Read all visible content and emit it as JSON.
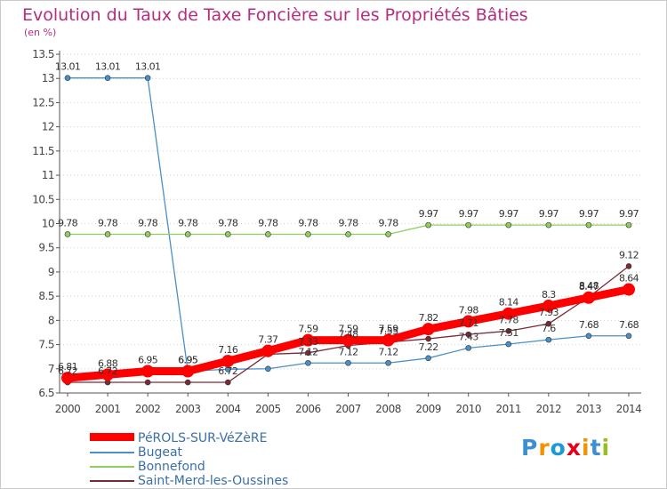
{
  "chart_data": {
    "type": "line",
    "title": "Evolution du Taux de Taxe Foncière sur les Propriétés Bâties",
    "ylabel": "(en %)",
    "xlabel": "",
    "ylim": [
      6.5,
      13.5
    ],
    "yticks": [
      6.5,
      7,
      7.5,
      8,
      8.5,
      9,
      9.5,
      10,
      10.5,
      11,
      11.5,
      12,
      12.5,
      13,
      13.5
    ],
    "x": [
      "2000",
      "2001",
      "2002",
      "2003",
      "2004",
      "2005",
      "2006",
      "2007",
      "2008",
      "2009",
      "2010",
      "2011",
      "2012",
      "2013",
      "2014"
    ],
    "grid": "horizontal dotted",
    "series": [
      {
        "name": "PéROLS-SUR-VéZèRE",
        "color": "#ff0000",
        "values": [
          6.81,
          6.88,
          6.95,
          6.95,
          7.16,
          7.37,
          7.59,
          7.59,
          7.59,
          7.82,
          7.98,
          8.14,
          8.3,
          8.47,
          8.64
        ],
        "labels": [
          "6.81",
          "6.88",
          "6.95",
          "6.95",
          "7.16",
          "7.37",
          "7.59",
          "7.59",
          "7.59",
          "7.82",
          "7.98",
          "8.14",
          "8.3",
          "8.47",
          "8.64"
        ]
      },
      {
        "name": "Bugeat",
        "color": "#4a90c8",
        "values": [
          13.01,
          13.01,
          13.01,
          6.95,
          6.99,
          7.0,
          7.12,
          7.12,
          7.12,
          7.22,
          7.43,
          7.51,
          7.6,
          7.68,
          7.68
        ],
        "labels": [
          "13.01",
          "13.01",
          "13.01",
          "6.95",
          "",
          "",
          "7.12",
          "7.12",
          "7.12",
          "7.22",
          "7.43",
          "7.51",
          "7.6",
          "7.68",
          "7.68"
        ]
      },
      {
        "name": "Bonnefond",
        "color": "#8fce5a",
        "values": [
          9.78,
          9.78,
          9.78,
          9.78,
          9.78,
          9.78,
          9.78,
          9.78,
          9.78,
          9.97,
          9.97,
          9.97,
          9.97,
          9.97,
          9.97
        ],
        "labels": [
          "9.78",
          "9.78",
          "9.78",
          "9.78",
          "9.78",
          "9.78",
          "9.78",
          "9.78",
          "9.78",
          "9.97",
          "9.97",
          "9.97",
          "9.97",
          "9.97",
          "9.97"
        ]
      },
      {
        "name": "Saint-Merd-les-Oussines",
        "color": "#7a2a35",
        "values": [
          6.72,
          6.72,
          6.72,
          6.72,
          6.72,
          7.3,
          7.33,
          7.48,
          7.55,
          7.62,
          7.71,
          7.78,
          7.93,
          8.48,
          9.12
        ],
        "labels": [
          "6.72",
          "6.72",
          "",
          "",
          "6.72",
          "",
          "7.33",
          "7.48",
          "7.55",
          "",
          "7.71",
          "7.78",
          "7.93",
          "8.48",
          "9.12"
        ]
      }
    ]
  },
  "legend": [
    {
      "label": "PéROLS-SUR-VéZèRE",
      "color": "#ff0000"
    },
    {
      "label": "Bugeat",
      "color": "#4a90c8"
    },
    {
      "label": "Bonnefond",
      "color": "#8fce5a"
    },
    {
      "label": "Saint-Merd-les-Oussines",
      "color": "#7a2a35"
    }
  ],
  "brand": {
    "name": "Proxiti",
    "letters": [
      "P",
      "r",
      "o",
      "x",
      "i",
      "t",
      "i"
    ],
    "colors": [
      "#3d8fd1",
      "#f39200",
      "#1b9ad6",
      "#e2001a",
      "#f39200",
      "#3d8fd1",
      "#95c11f"
    ]
  }
}
